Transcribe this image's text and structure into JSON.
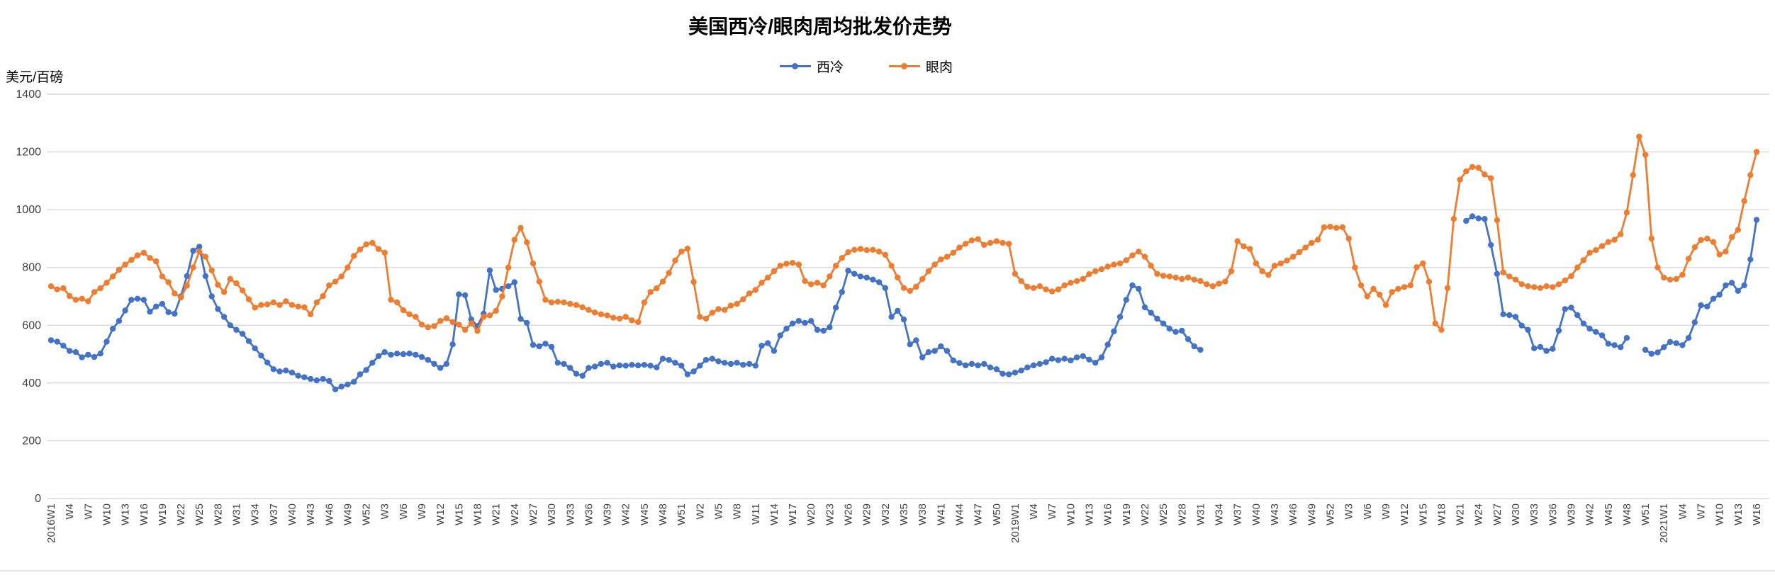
{
  "title": "美国西冷/眼肉周均批发价走势",
  "y_axis": {
    "unit": "美元/百磅",
    "ticks": [
      0,
      200,
      400,
      600,
      800,
      1000,
      1200,
      1400
    ]
  },
  "legend": [
    {
      "label": "西冷",
      "color": "#4472C4"
    },
    {
      "label": "眼肉",
      "color": "#ED7D31"
    }
  ],
  "colors": {
    "gridline": "#D9D9D9",
    "tick_text": "#404040",
    "baseline": "#D9D9D9"
  },
  "chart_data": {
    "type": "line",
    "title": "美国西冷/眼肉周均批发价走势",
    "ylabel": "美元/百磅",
    "ylim": [
      0,
      1400
    ],
    "grid": true,
    "legend_position": "top",
    "x_unit": "week",
    "ticks_every": 3,
    "x_tick_labels": [
      "2016W1",
      "W4",
      "W7",
      "W10",
      "W13",
      "W16",
      "W19",
      "W22",
      "W25",
      "W28",
      "W31",
      "W34",
      "W37",
      "W40",
      "W43",
      "W46",
      "W49",
      "W52",
      "W3",
      "W6",
      "W9",
      "W12",
      "W15",
      "W18",
      "W21",
      "W24",
      "W27",
      "W30",
      "W33",
      "W36",
      "W39",
      "W42",
      "W45",
      "W48",
      "W51",
      "W2",
      "W5",
      "W8",
      "W11",
      "W14",
      "W17",
      "W20",
      "W23",
      "W26",
      "W29",
      "W32",
      "W35",
      "W38",
      "W41",
      "W44",
      "W47",
      "W50",
      "2019W1",
      "W4",
      "W7",
      "W10",
      "W13",
      "W16",
      "W19",
      "W22",
      "W25",
      "W28",
      "W31",
      "W34",
      "W37",
      "W40",
      "W43",
      "W46",
      "W49",
      "W52",
      "W3",
      "W6",
      "W9",
      "W12",
      "W15",
      "W18",
      "W21",
      "W24",
      "W27",
      "W30",
      "W33",
      "W36",
      "W39",
      "W42",
      "W45",
      "W48",
      "W51",
      "2021W1",
      "W4",
      "W7",
      "W10",
      "W13",
      "W16"
    ],
    "series": [
      {
        "name": "西冷",
        "color": "#4472C4",
        "values": [
          548,
          543,
          529,
          511,
          507,
          489,
          498,
          490,
          502,
          543,
          588,
          615,
          651,
          688,
          692,
          688,
          647,
          665,
          674,
          645,
          640,
          700,
          770,
          858,
          872,
          770,
          700,
          656,
          629,
          600,
          584,
          570,
          545,
          520,
          495,
          471,
          448,
          440,
          443,
          436,
          425,
          420,
          414,
          409,
          414,
          407,
          378,
          388,
          395,
          404,
          430,
          445,
          470,
          493,
          507,
          498,
          502,
          500,
          502,
          498,
          490,
          480,
          466,
          452,
          466,
          534,
          707,
          704,
          620,
          597,
          640,
          790,
          722,
          726,
          735,
          749,
          622,
          608,
          532,
          527,
          536,
          525,
          470,
          466,
          452,
          432,
          425,
          452,
          457,
          466,
          470,
          457,
          461,
          460,
          463,
          461,
          463,
          460,
          454,
          484,
          480,
          470,
          460,
          430,
          440,
          460,
          480,
          484,
          475,
          470,
          466,
          470,
          463,
          466,
          460,
          529,
          538,
          511,
          565,
          588,
          606,
          615,
          608,
          615,
          584,
          581,
          593,
          661,
          715,
          789,
          778,
          769,
          765,
          758,
          749,
          729,
          629,
          650,
          620,
          534,
          548,
          489,
          507,
          511,
          527,
          511,
          478,
          469,
          461,
          466,
          461,
          466,
          454,
          448,
          432,
          430,
          436,
          443,
          454,
          461,
          466,
          472,
          484,
          479,
          484,
          478,
          489,
          493,
          481,
          470,
          489,
          533,
          579,
          629,
          688,
          738,
          726,
          662,
          643,
          623,
          606,
          588,
          577,
          581,
          552,
          527,
          515,
          null,
          null,
          null,
          null,
          null,
          null,
          null,
          null,
          null,
          null,
          null,
          null,
          null,
          null,
          null,
          null,
          null,
          null,
          null,
          null,
          null,
          null,
          null,
          null,
          null,
          null,
          null,
          null,
          null,
          null,
          null,
          null,
          null,
          null,
          null,
          null,
          null,
          null,
          null,
          null,
          null,
          null,
          961,
          977,
          970,
          968,
          878,
          778,
          638,
          635,
          629,
          599,
          584,
          520,
          525,
          511,
          518,
          581,
          656,
          661,
          635,
          606,
          588,
          577,
          565,
          536,
          531,
          524,
          556,
          null,
          null,
          515,
          501,
          506,
          524,
          542,
          538,
          531,
          556,
          610,
          669,
          665,
          692,
          706,
          738,
          747,
          719,
          738,
          828,
          965
        ]
      },
      {
        "name": "眼肉",
        "color": "#ED7D31",
        "values": [
          735,
          724,
          728,
          701,
          688,
          692,
          683,
          715,
          728,
          747,
          769,
          792,
          810,
          826,
          842,
          851,
          833,
          821,
          769,
          749,
          710,
          696,
          737,
          800,
          855,
          837,
          790,
          740,
          715,
          760,
          745,
          720,
          690,
          661,
          670,
          672,
          679,
          670,
          683,
          670,
          665,
          662,
          638,
          679,
          701,
          738,
          751,
          769,
          800,
          840,
          862,
          880,
          885,
          864,
          851,
          688,
          679,
          652,
          638,
          629,
          602,
          593,
          597,
          615,
          624,
          611,
          602,
          584,
          606,
          580,
          629,
          634,
          650,
          700,
          800,
          896,
          937,
          887,
          814,
          751,
          688,
          679,
          681,
          679,
          674,
          670,
          662,
          653,
          644,
          638,
          634,
          626,
          623,
          629,
          617,
          611,
          679,
          715,
          728,
          751,
          781,
          824,
          855,
          865,
          750,
          629,
          623,
          643,
          656,
          653,
          668,
          674,
          690,
          710,
          722,
          747,
          765,
          787,
          806,
          813,
          816,
          810,
          753,
          742,
          747,
          738,
          769,
          806,
          833,
          853,
          861,
          864,
          860,
          861,
          855,
          844,
          806,
          765,
          729,
          719,
          733,
          760,
          787,
          810,
          828,
          837,
          851,
          869,
          882,
          894,
          898,
          878,
          885,
          891,
          885,
          882,
          778,
          753,
          733,
          729,
          735,
          724,
          717,
          724,
          738,
          747,
          753,
          760,
          777,
          787,
          794,
          803,
          810,
          814,
          825,
          842,
          855,
          837,
          806,
          778,
          771,
          769,
          765,
          760,
          765,
          758,
          753,
          742,
          735,
          744,
          751,
          787,
          891,
          873,
          864,
          814,
          787,
          774,
          806,
          814,
          824,
          837,
          853,
          869,
          885,
          896,
          939,
          941,
          937,
          939,
          900,
          800,
          738,
          700,
          726,
          706,
          670,
          715,
          726,
          732,
          738,
          801,
          814,
          751,
          606,
          584,
          729,
          968,
          1104,
          1133,
          1148,
          1145,
          1122,
          1109,
          964,
          783,
          769,
          758,
          742,
          735,
          732,
          729,
          735,
          732,
          742,
          755,
          770,
          800,
          825,
          851,
          860,
          874,
          888,
          896,
          915,
          990,
          1120,
          1253,
          1190,
          900,
          800,
          765,
          758,
          760,
          775,
          830,
          870,
          895,
          900,
          888,
          845,
          855,
          905,
          930,
          1030,
          1120,
          1200
        ]
      }
    ]
  }
}
